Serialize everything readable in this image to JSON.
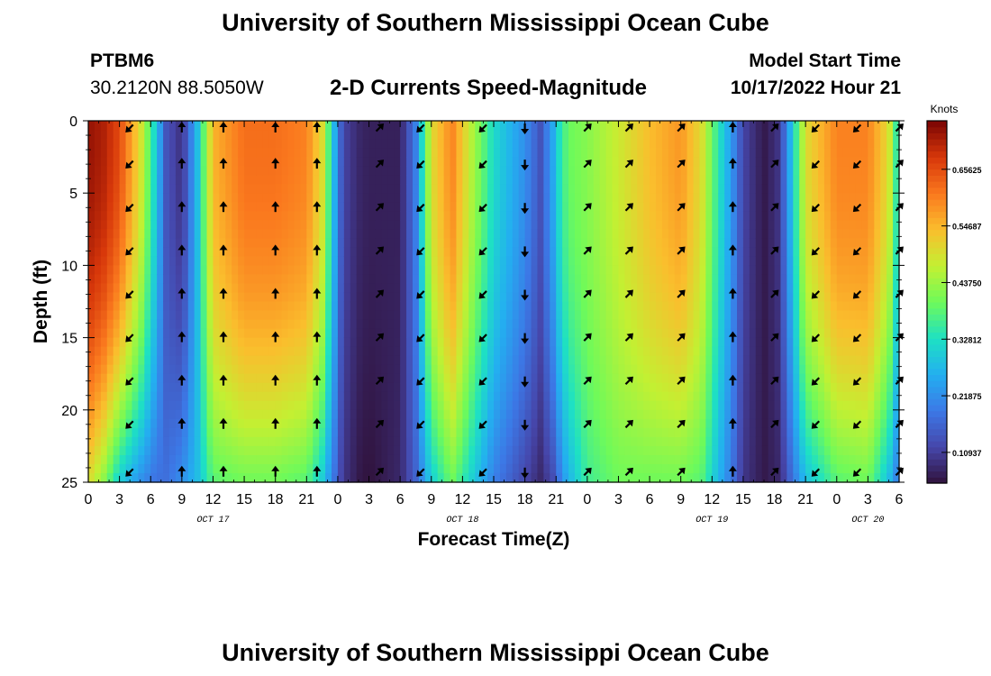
{
  "header": {
    "institution": "University of Southern Mississippi Ocean Cube",
    "station": "PTBM6",
    "location": "30.2120N  88.5050W",
    "model_start_label": "Model Start Time",
    "model_start_value": "10/17/2022 Hour 21"
  },
  "footer": {
    "institution": "University of Southern Mississippi Ocean Cube"
  },
  "chart_data": {
    "type": "heatmap",
    "title": "2-D Currents Speed-Magnitude",
    "xlabel": "Forecast Time(Z)",
    "ylabel": "Depth (ft)",
    "colorbar_label": "Knots",
    "x_ticks": [
      "0",
      "3",
      "6",
      "9",
      "12",
      "15",
      "18",
      "21",
      "0",
      "3",
      "6",
      "9",
      "12",
      "15",
      "18",
      "21",
      "0",
      "3",
      "6",
      "9",
      "12",
      "15",
      "18",
      "21",
      "0",
      "3",
      "6"
    ],
    "x_tick_hours": [
      0,
      3,
      6,
      9,
      12,
      15,
      18,
      21,
      24,
      27,
      30,
      33,
      36,
      39,
      42,
      45,
      48,
      51,
      54,
      57,
      60,
      63,
      66,
      69,
      72,
      75,
      78
    ],
    "x_range_hours": [
      0,
      78
    ],
    "date_labels": [
      {
        "text": "OCT 17",
        "hour": 12
      },
      {
        "text": "OCT 18",
        "hour": 36
      },
      {
        "text": "OCT 19",
        "hour": 60
      },
      {
        "text": "OCT 20",
        "hour": 75
      }
    ],
    "y_ticks": [
      0,
      5,
      10,
      15,
      20,
      25
    ],
    "y_range_ft": [
      0,
      25
    ],
    "colorbar_ticks": [
      "0.10937",
      "0.21875",
      "0.32812",
      "0.43750",
      "0.54687",
      "0.65625"
    ],
    "colorbar_tick_values": [
      0.10937,
      0.21875,
      0.32812,
      0.4375,
      0.54687,
      0.65625
    ],
    "colorbar_range": [
      0.05,
      0.75
    ],
    "speed_profile": {
      "hours": [
        0,
        1.5,
        3,
        5,
        6.5,
        7.5,
        9,
        10.5,
        12,
        15,
        18,
        21,
        22.5,
        23.5,
        24.5,
        26,
        27,
        30,
        31.5,
        33,
        35,
        37,
        39,
        42,
        43.5,
        45,
        45.5,
        46.5,
        48,
        51,
        54,
        57,
        59,
        60.5,
        62,
        63,
        65,
        66.5,
        69,
        72,
        75,
        77,
        78
      ],
      "surface_knots": [
        0.73,
        0.71,
        0.66,
        0.5,
        0.3,
        0.14,
        0.09,
        0.28,
        0.55,
        0.62,
        0.62,
        0.6,
        0.5,
        0.3,
        0.12,
        0.08,
        0.07,
        0.07,
        0.2,
        0.5,
        0.6,
        0.45,
        0.32,
        0.22,
        0.14,
        0.28,
        0.36,
        0.4,
        0.42,
        0.48,
        0.54,
        0.58,
        0.5,
        0.35,
        0.22,
        0.12,
        0.06,
        0.1,
        0.5,
        0.6,
        0.6,
        0.5,
        0.3
      ],
      "bottom_knots": [
        0.5,
        0.42,
        0.3,
        0.22,
        0.18,
        0.18,
        0.22,
        0.28,
        0.38,
        0.4,
        0.4,
        0.38,
        0.3,
        0.2,
        0.1,
        0.06,
        0.05,
        0.08,
        0.16,
        0.3,
        0.4,
        0.3,
        0.2,
        0.12,
        0.08,
        0.14,
        0.22,
        0.28,
        0.36,
        0.4,
        0.4,
        0.4,
        0.38,
        0.28,
        0.18,
        0.1,
        0.06,
        0.08,
        0.28,
        0.38,
        0.4,
        0.28,
        0.18
      ]
    },
    "vectors": {
      "hours": [
        4,
        9,
        13,
        18,
        22,
        28,
        32,
        38,
        42,
        48,
        52,
        57,
        62,
        66,
        70,
        74,
        78
      ],
      "depths_ft": [
        0.5,
        3,
        6,
        9,
        12,
        15,
        18,
        21,
        24.3
      ],
      "directions": [
        "SW",
        "N",
        "N",
        "N",
        "N",
        "NE",
        "SW",
        "SW",
        "S",
        "NE",
        "NE",
        "NE",
        "N",
        "NE",
        "SW",
        "SW",
        "NE"
      ]
    }
  }
}
